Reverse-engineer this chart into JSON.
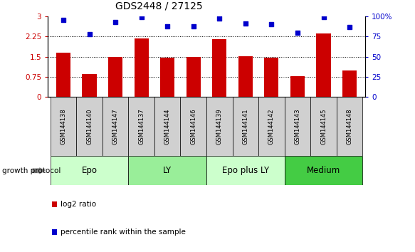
{
  "title": "GDS2448 / 27125",
  "samples": [
    "GSM144138",
    "GSM144140",
    "GSM144147",
    "GSM144137",
    "GSM144144",
    "GSM144146",
    "GSM144139",
    "GSM144141",
    "GSM144142",
    "GSM144143",
    "GSM144145",
    "GSM144148"
  ],
  "log2_ratio": [
    1.65,
    0.85,
    1.5,
    2.17,
    1.47,
    1.5,
    2.15,
    1.52,
    1.47,
    0.77,
    2.37,
    1.0
  ],
  "percentile_rank": [
    96,
    78,
    93,
    99,
    88,
    88,
    97,
    91,
    90,
    80,
    99,
    87
  ],
  "bar_color": "#cc0000",
  "dot_color": "#0000cc",
  "groups": [
    {
      "label": "Epo",
      "start": 0,
      "end": 3,
      "color": "#ccffcc"
    },
    {
      "label": "LY",
      "start": 3,
      "end": 6,
      "color": "#99ee99"
    },
    {
      "label": "Epo plus LY",
      "start": 6,
      "end": 9,
      "color": "#ccffcc"
    },
    {
      "label": "Medium",
      "start": 9,
      "end": 12,
      "color": "#44cc44"
    }
  ],
  "left_yticks": [
    0,
    0.75,
    1.5,
    2.25,
    3
  ],
  "left_ylabels": [
    "0",
    "0.75",
    "1.5",
    "2.25",
    "3"
  ],
  "right_yticks": [
    0,
    25,
    50,
    75,
    100
  ],
  "right_ylabels": [
    "0",
    "25",
    "50",
    "75",
    "100%"
  ],
  "ylim": [
    0,
    3
  ],
  "right_ylim": [
    0,
    100
  ],
  "growth_protocol_label": "growth protocol",
  "legend_bar_label": "log2 ratio",
  "legend_dot_label": "percentile rank within the sample",
  "background_color": "#ffffff",
  "plot_bg_color": "#ffffff",
  "title_fontsize": 10,
  "tick_fontsize": 7.5,
  "sample_fontsize": 6,
  "group_fontsize": 8.5,
  "legend_fontsize": 7.5,
  "gp_fontsize": 7.5
}
